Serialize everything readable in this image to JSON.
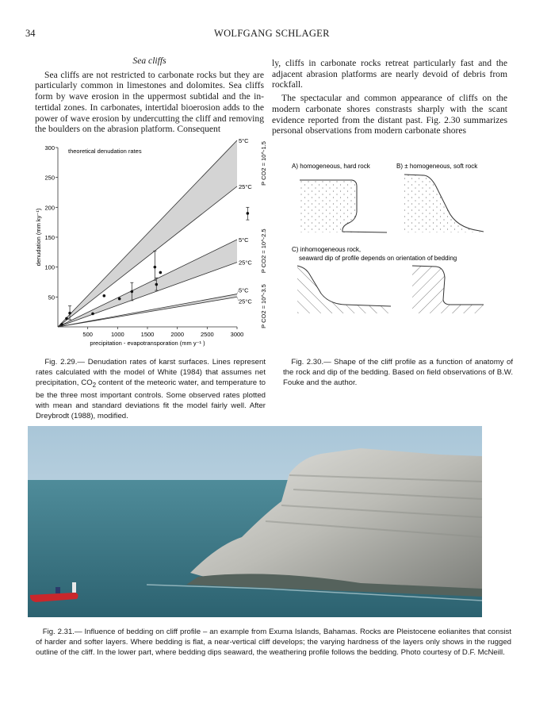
{
  "header": {
    "page_number": "34",
    "running_head": "WOLFGANG SCHLAGER"
  },
  "body": {
    "heading": "Sea cliffs",
    "left_paragraph": "Sea cliffs are not restricted to carbonate rocks but they are particularly common in limestones and dolomites. Sea cliffs form by wave erosion in the uppermost subtidal and the in­tertidal zones.  In carbonates, intertidal bioerosion adds to the power of wave erosion by undercutting the cliff and re­moving the boulders on the abrasion platform. Consequent­",
    "right_paragraph_1": "ly, cliffs in carbonate rocks retreat particularly fast and the adjacent abrasion platforms are nearly devoid of debris from rockfall.",
    "right_paragraph_2": "The spectacular and common appearance of cliffs on the modern carbonate shores constrasts sharply with the scant evidence reported from the distant past.  Fig. 2.30 summa­rizes personal observations from modern carbonate shores"
  },
  "chart_data": {
    "type": "line",
    "title": "theoretical denudation rates",
    "xlabel": "precipitation - evapotransporation (mm y⁻¹ )",
    "ylabel": "denudation (mm ky⁻¹)",
    "xlim": [
      0,
      3000
    ],
    "ylim": [
      0,
      300
    ],
    "xticks": [
      500,
      1000,
      1500,
      2000,
      2500,
      3000
    ],
    "yticks": [
      50,
      100,
      150,
      200,
      250,
      300
    ],
    "grid": false,
    "bands": [
      {
        "label": "P CO2 = 10^-1.5",
        "label_text": "P",
        "sub": "CO2",
        "eq": " = 10",
        "exp": "-1.5",
        "upper": {
          "name": "5°C",
          "value_at_3000": 312
        },
        "lower": {
          "name": "25°C",
          "value_at_3000": 235
        }
      },
      {
        "label": "P CO2 = 10^-2.5",
        "label_text": "P",
        "sub": "CO2",
        "eq": " = 10",
        "exp": "-2.5",
        "upper": {
          "name": "5°C",
          "value_at_3000": 146
        },
        "lower": {
          "name": "25°C",
          "value_at_3000": 108
        }
      },
      {
        "label": "P CO2 = 10^-3.5",
        "label_text": "P",
        "sub": "CO2",
        "eq": " = 10",
        "exp": "-3.5",
        "upper": {
          "name": "5°C",
          "value_at_3000": 55
        },
        "lower": {
          "name": "25°C",
          "value_at_3000": 50
        }
      }
    ],
    "points": [
      {
        "x": 66,
        "y": 4
      },
      {
        "x": 146,
        "y": 14
      },
      {
        "x": 200,
        "y": 23,
        "err_low": 12,
        "err_high": 35
      },
      {
        "x": 584,
        "y": 22
      },
      {
        "x": 774,
        "y": 52
      },
      {
        "x": 1031,
        "y": 47
      },
      {
        "x": 1239,
        "y": 59,
        "err_low": 44,
        "err_high": 74
      },
      {
        "x": 1624,
        "y": 100,
        "err_low": 78,
        "err_high": 127
      },
      {
        "x": 1650,
        "y": 71,
        "err_low": 61,
        "err_high": 82
      },
      {
        "x": 1717,
        "y": 91
      },
      {
        "x": 3177,
        "y": 190,
        "err_low": 179,
        "err_high": 200
      }
    ],
    "colors": {
      "band": "#d4d4d4",
      "line": "#333333"
    }
  },
  "fig30": {
    "a_label": "A) homogeneous, hard rock",
    "b_label": "B) ± homogeneous, soft rock",
    "c_label_1": "C) inhomogeneous rock,",
    "c_label_2": "seaward dip of profile depends on orientation of bedding"
  },
  "captions": {
    "fig229": [
      "Fig. 2.29.— Denudation rates of karst surfaces. Lines represent rates calculated with the model of White (1984) that assumes net precipitation, CO",
      "2",
      " content of the meteoric water, and temperature to be the three most important controls.  Some observed rates plotted with mean and standard deviations fit the model fairly well. After Dreybrodt (1988), modified."
    ],
    "fig230": "Fig. 2.30.— Shape of the cliff profile as a function of anatomy of the rock and dip of the bedding. Based on field observations of B.W. Fouke and the author.",
    "fig231": "Fig. 2.31.— Influence of bedding on cliff profile – an example from Exuma Islands, Bahamas. Rocks are Pleistocene eolianites that consist of harder and softer layers.  Where bedding is flat, a near-vertical cliff develops; the varying hardness of the layers only shows in the rugged outline of the cliff.  In the lower part, where bedding dips seaward, the weathering profile follows the bedding. Photo courtesy of D.F. McNeill."
  }
}
